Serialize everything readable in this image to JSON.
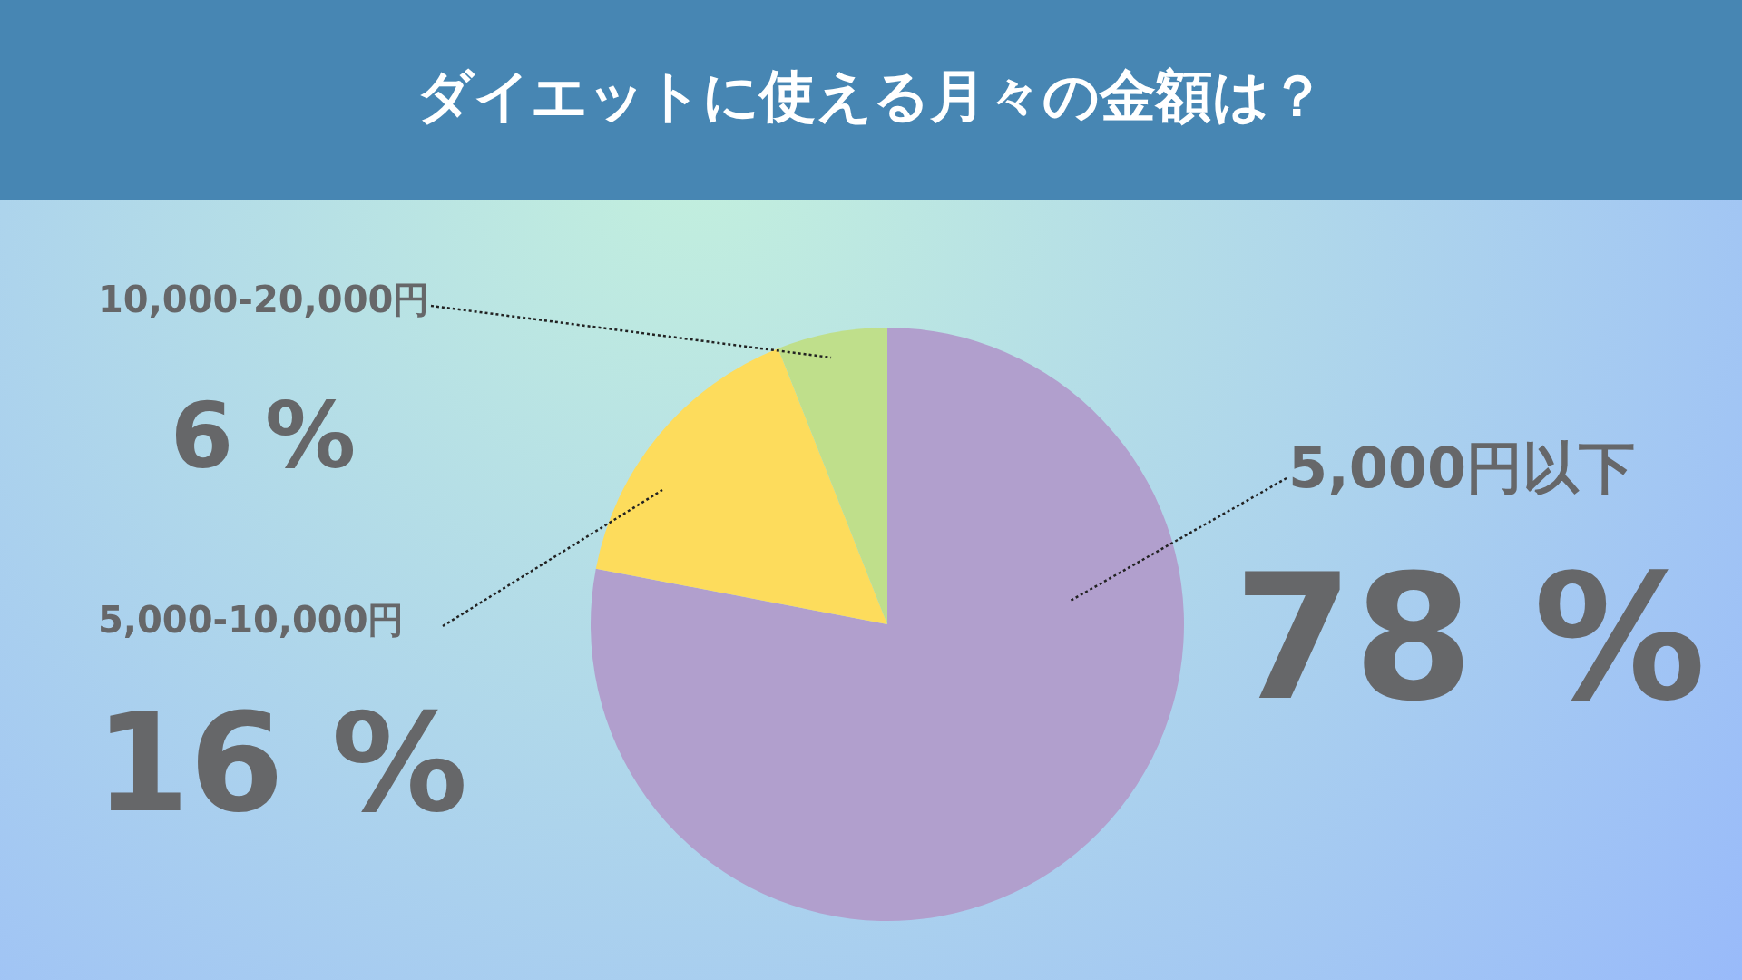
{
  "chart_data": {
    "type": "pie",
    "title": "ダイエットに使える月々の金額は？",
    "categories": [
      "5,000円以下",
      "5,000-10,000円",
      "10,000-20,000円"
    ],
    "values": [
      78,
      16,
      6
    ],
    "colors": [
      "#b19fcd",
      "#fddc5c",
      "#bfdf8b"
    ],
    "value_labels": [
      "78 %",
      "16 %",
      "6 %"
    ]
  }
}
